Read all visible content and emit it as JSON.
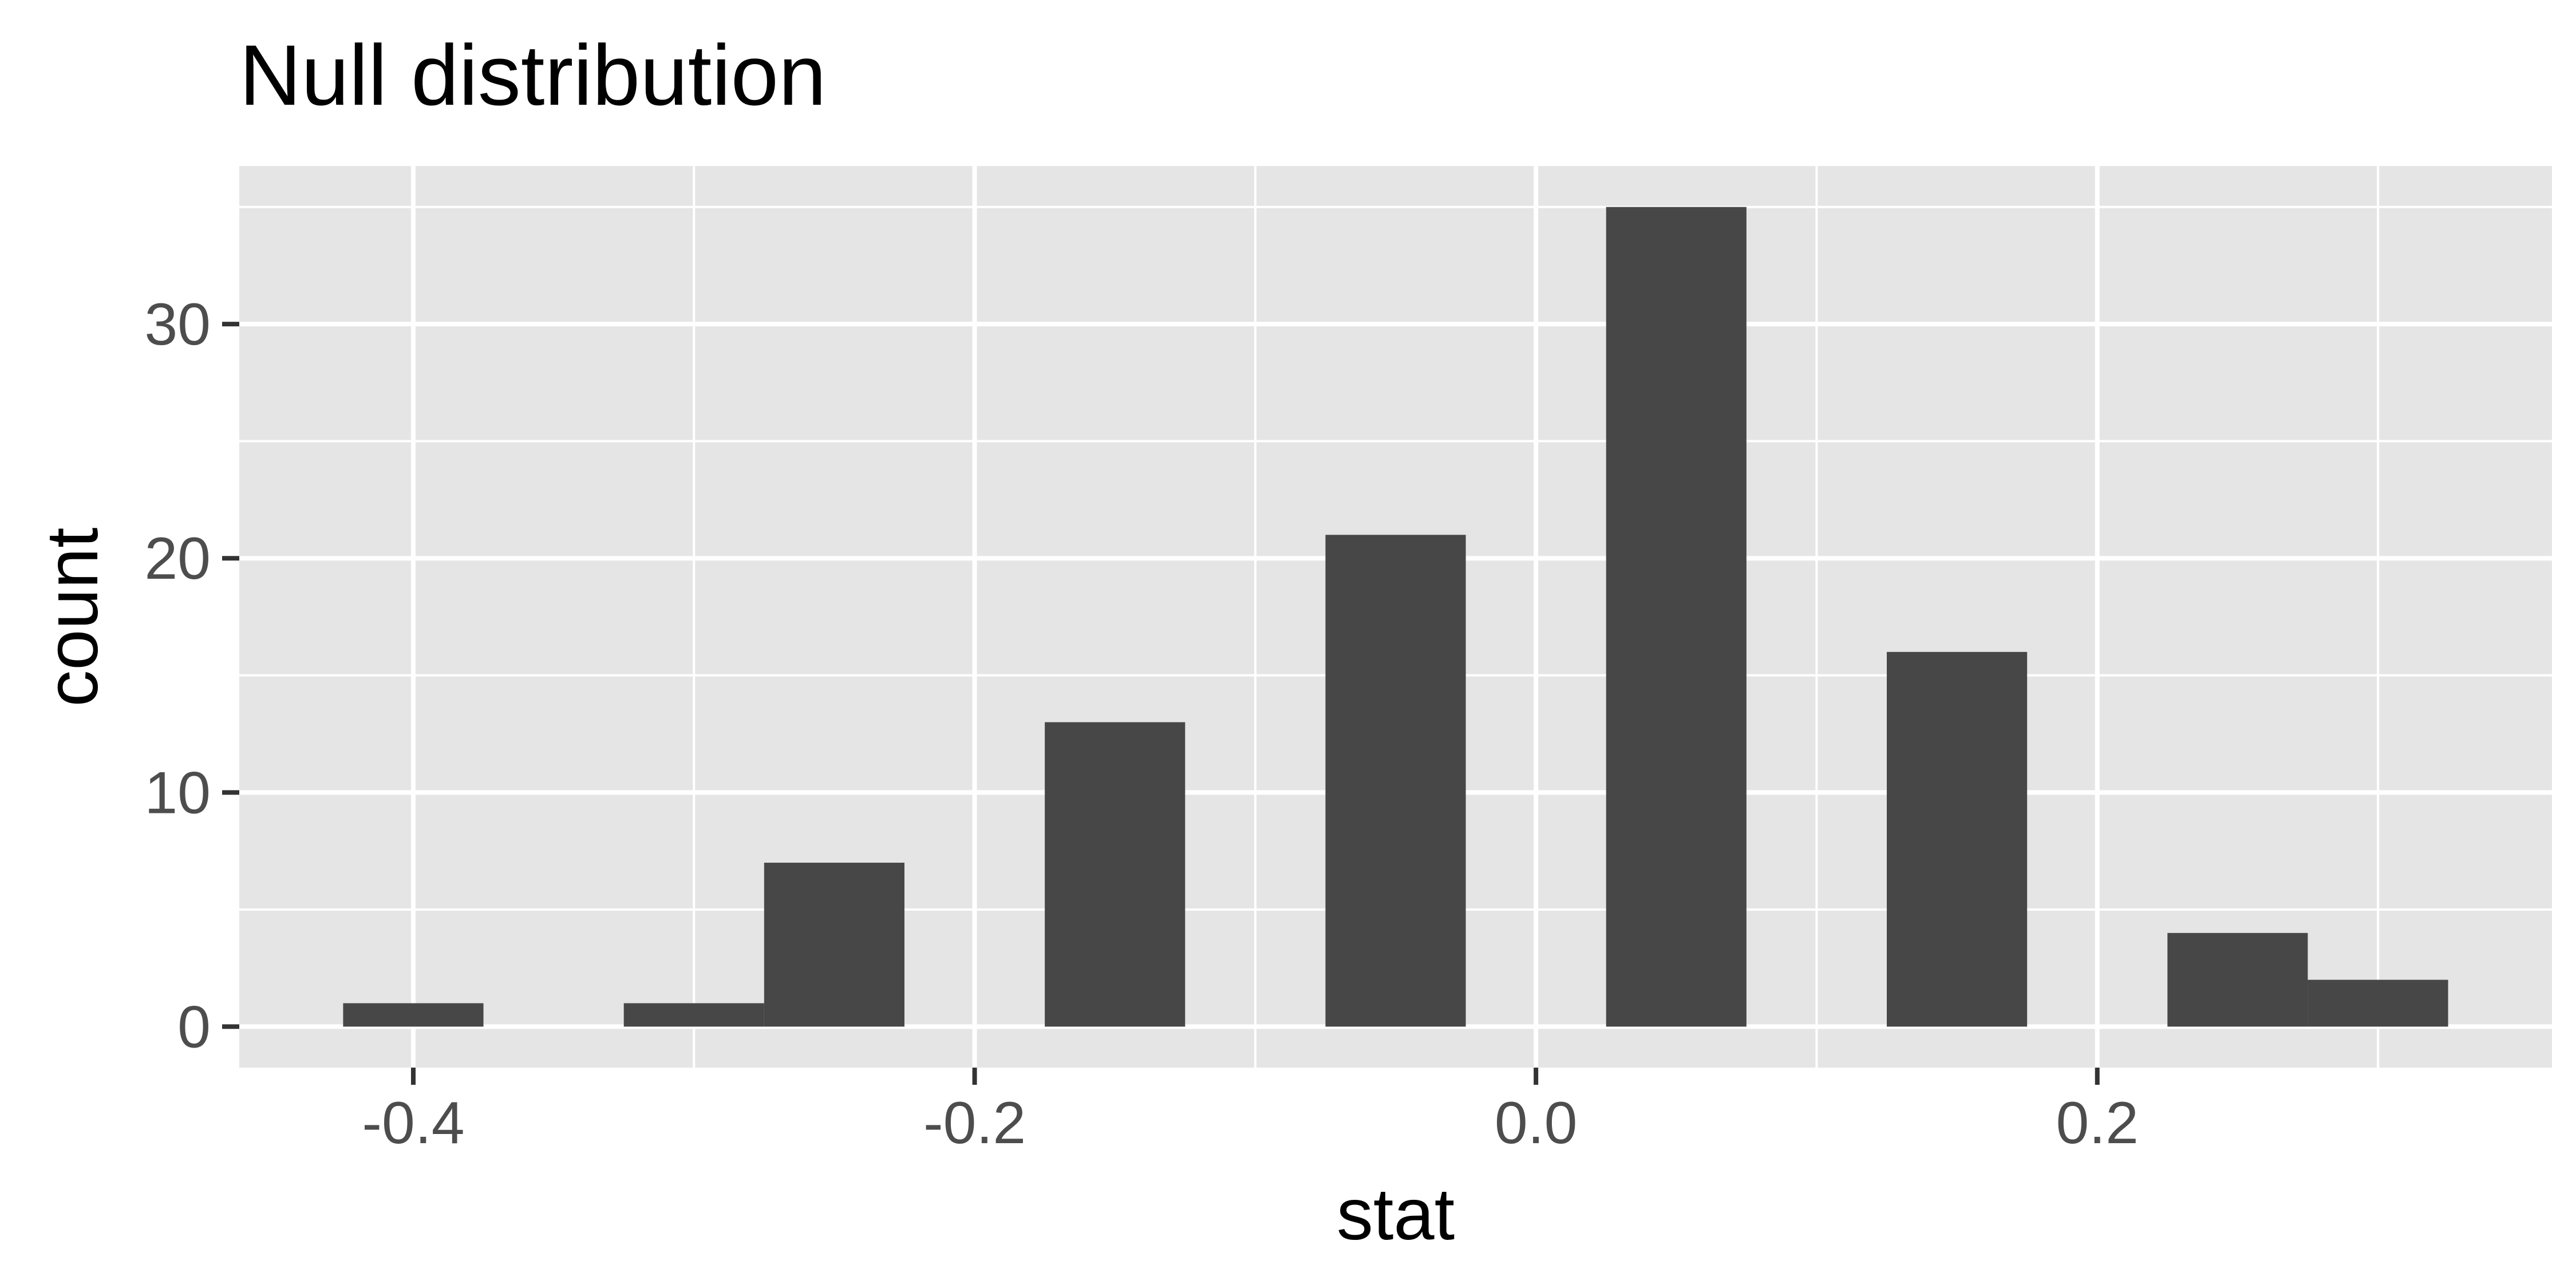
{
  "chart_data": {
    "type": "bar",
    "title": "Null distribution",
    "xlabel": "stat",
    "ylabel": "count",
    "bin_width": 0.05,
    "bins": [
      {
        "center": -0.4,
        "count": 1
      },
      {
        "center": -0.3,
        "count": 1
      },
      {
        "center": -0.25,
        "count": 7
      },
      {
        "center": -0.15,
        "count": 13
      },
      {
        "center": -0.05,
        "count": 21
      },
      {
        "center": 0.05,
        "count": 35
      },
      {
        "center": 0.15,
        "count": 16
      },
      {
        "center": 0.25,
        "count": 4
      },
      {
        "center": 0.3,
        "count": 2
      }
    ],
    "xlim": [
      -0.462,
      0.362
    ],
    "ylim": [
      -1.75,
      36.75
    ],
    "x_ticks": [
      -0.4,
      -0.2,
      0.0,
      0.2
    ],
    "x_tick_labels": [
      "-0.4",
      "-0.2",
      "0.0",
      "0.2"
    ],
    "y_ticks": [
      0,
      10,
      20,
      30
    ],
    "y_tick_labels": [
      "0",
      "10",
      "20",
      "30"
    ],
    "x_minor_ticks": [
      -0.3,
      -0.1,
      0.1,
      0.3
    ],
    "y_minor_ticks": [
      5,
      15,
      25,
      35
    ],
    "grid": true,
    "colors": {
      "bar_fill": "#474747",
      "panel_background": "#e5e5e5",
      "grid": "#ffffff"
    }
  }
}
